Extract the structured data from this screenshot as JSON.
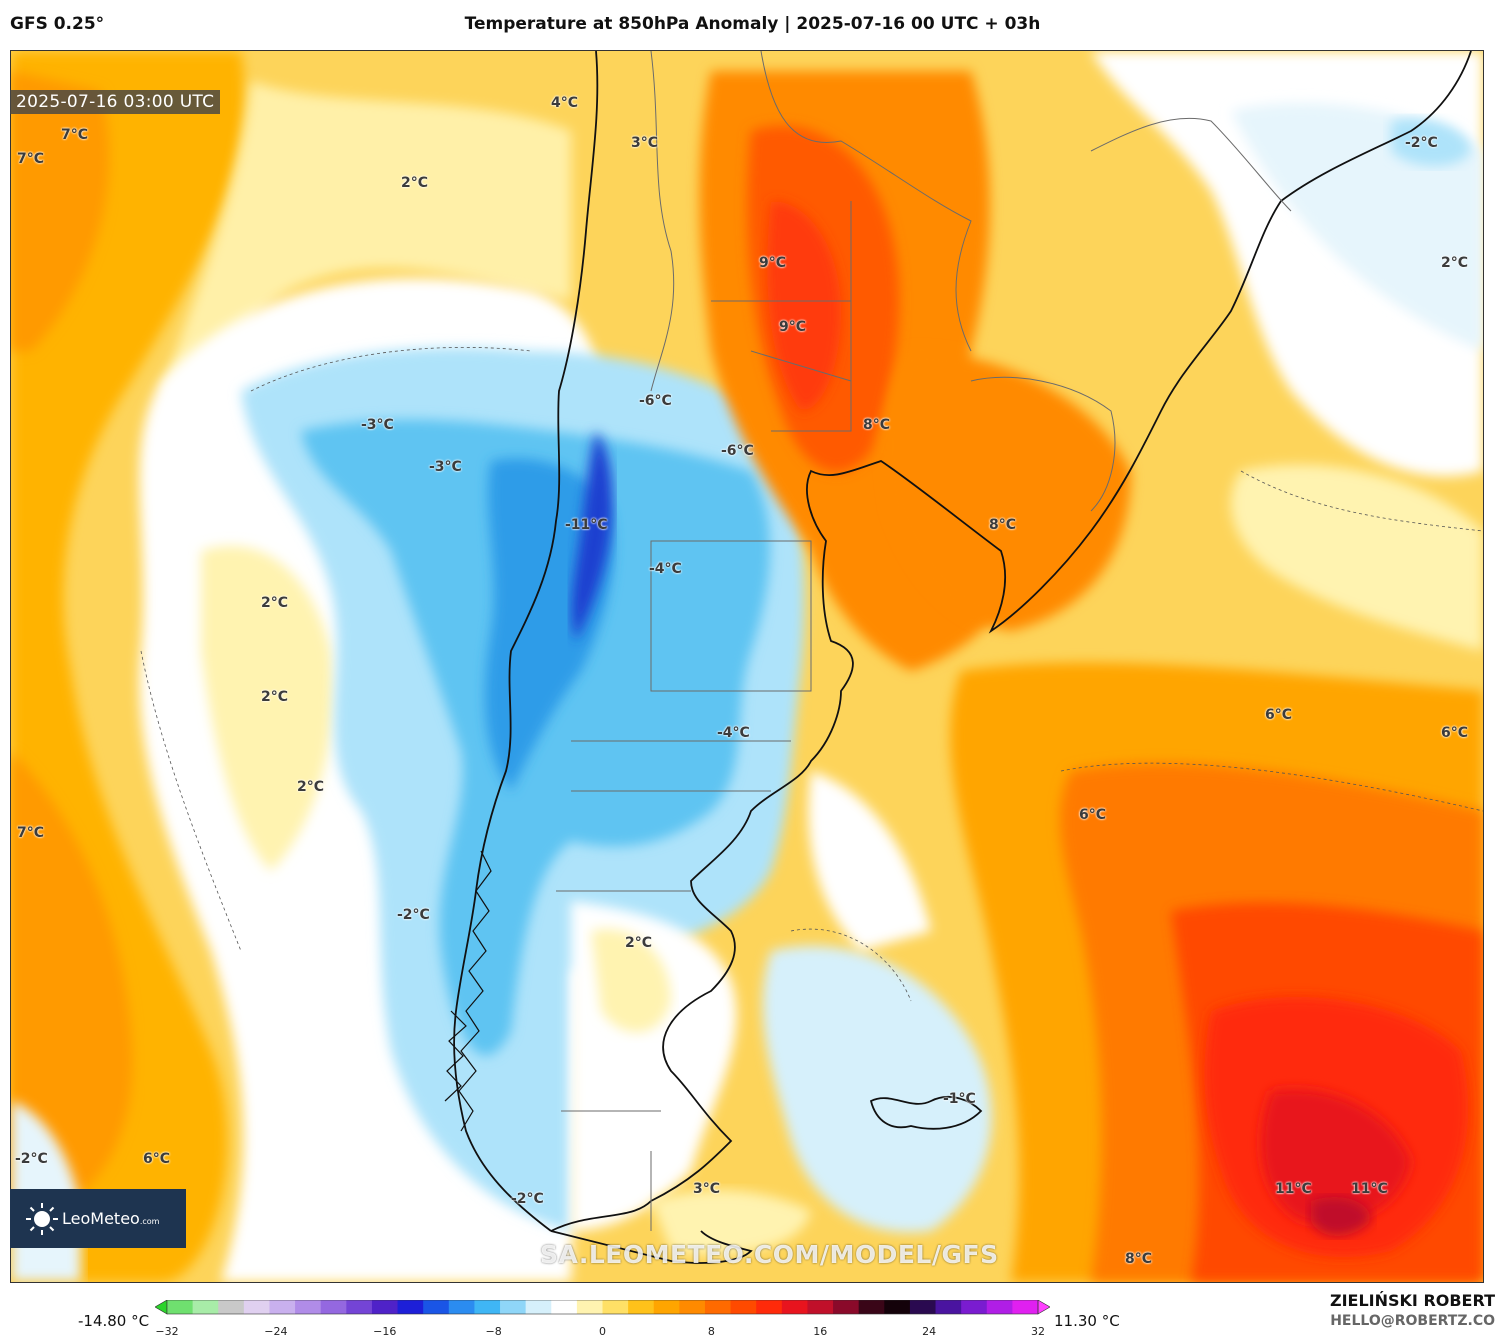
{
  "header": {
    "model": "GFS 0.25°",
    "title": "Temperature at 850hPa Anomaly | 2025-07-16 00 UTC + 03h"
  },
  "timestamp": "2025-07-16 03:00 UTC",
  "brand": {
    "name": "LeoMeteo",
    "suffix": ".com",
    "logo_icon": "sun-icon"
  },
  "watermark": "SA.LEOMETEO.COM/MODEL/GFS",
  "labels": [
    {
      "text": "4°C"
    },
    {
      "text": "7°C"
    },
    {
      "text": "7°C"
    },
    {
      "text": "3°C"
    },
    {
      "text": "2°C"
    },
    {
      "text": "-2°C"
    },
    {
      "text": "2°C"
    },
    {
      "text": "9°C"
    },
    {
      "text": "9°C"
    },
    {
      "text": "-6°C"
    },
    {
      "text": "-3°C"
    },
    {
      "text": "-3°C"
    },
    {
      "text": "-6°C"
    },
    {
      "text": "8°C"
    },
    {
      "text": "-11°C"
    },
    {
      "text": "8°C"
    },
    {
      "text": "-4°C"
    },
    {
      "text": "2°C"
    },
    {
      "text": "2°C"
    },
    {
      "text": "6°C"
    },
    {
      "text": "-4°C"
    },
    {
      "text": "6°C"
    },
    {
      "text": "2°C"
    },
    {
      "text": "6°C"
    },
    {
      "text": "7°C"
    },
    {
      "text": "-2°C"
    },
    {
      "text": "2°C"
    },
    {
      "text": "-1°C"
    },
    {
      "text": "-2°C"
    },
    {
      "text": "6°C"
    },
    {
      "text": "-2°C"
    },
    {
      "text": "3°C"
    },
    {
      "text": "11°C"
    },
    {
      "text": "11°C"
    },
    {
      "text": "8°C"
    }
  ],
  "colorbar": {
    "min_label": "-14.80 °C",
    "max_label": "11.30 °C",
    "ticks": [
      "−32",
      "−24",
      "−16",
      "−8",
      "0",
      "8",
      "16",
      "24",
      "32"
    ],
    "colors": [
      "#2bd42b",
      "#6fe06f",
      "#a8eca8",
      "#c9c9c9",
      "#e0d0f0",
      "#c9b0ee",
      "#b08ce8",
      "#9468e0",
      "#7444d6",
      "#4f22c8",
      "#1d1fd8",
      "#1a55e6",
      "#2b8cf0",
      "#3fb6f5",
      "#8fd6f8",
      "#d6f0fb",
      "#ffffff",
      "#fff3b0",
      "#ffe066",
      "#ffc21a",
      "#ffa500",
      "#ff8a00",
      "#ff6a00",
      "#ff4a00",
      "#ff2a0a",
      "#e8141e",
      "#c0102a",
      "#8a0a2a",
      "#3a0618",
      "#14020a",
      "#2a0a50",
      "#4a14a0",
      "#7a1cd0",
      "#b01ee6",
      "#e020f0",
      "#ff40ff"
    ]
  },
  "footer": {
    "author": "ZIELIŃSKI ROBERT",
    "email": "HELLO@ROBERTZ.CO"
  }
}
